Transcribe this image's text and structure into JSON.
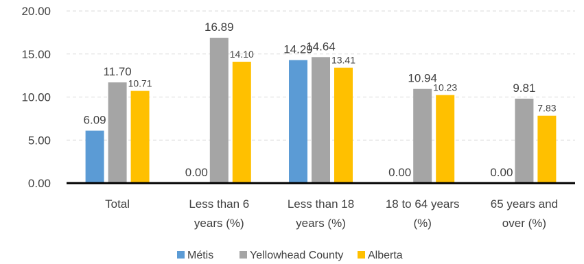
{
  "chart_data": {
    "type": "bar",
    "title": "",
    "xlabel": "",
    "ylabel": "",
    "categories": [
      [
        "Total"
      ],
      [
        "Less than 6",
        "years (%)"
      ],
      [
        "Less than 18",
        "years (%)"
      ],
      [
        "18 to 64 years",
        "(%)"
      ],
      [
        "65 years and",
        "over (%)"
      ]
    ],
    "series": [
      {
        "name": "Métis",
        "color": "#5b9bd5",
        "values": [
          6.09,
          0.0,
          14.29,
          0.0,
          0.0
        ]
      },
      {
        "name": "Yellowhead County",
        "color": "#a5a5a5",
        "values": [
          11.7,
          16.89,
          14.64,
          10.94,
          9.81
        ]
      },
      {
        "name": "Alberta",
        "color": "#ffc000",
        "values": [
          10.71,
          14.1,
          13.41,
          10.23,
          7.83
        ]
      }
    ],
    "ylim": [
      0,
      20
    ],
    "yticks": [
      "0.00",
      "5.00",
      "10.00",
      "15.00",
      "20.00"
    ],
    "grid": true,
    "legend_position": "bottom"
  }
}
